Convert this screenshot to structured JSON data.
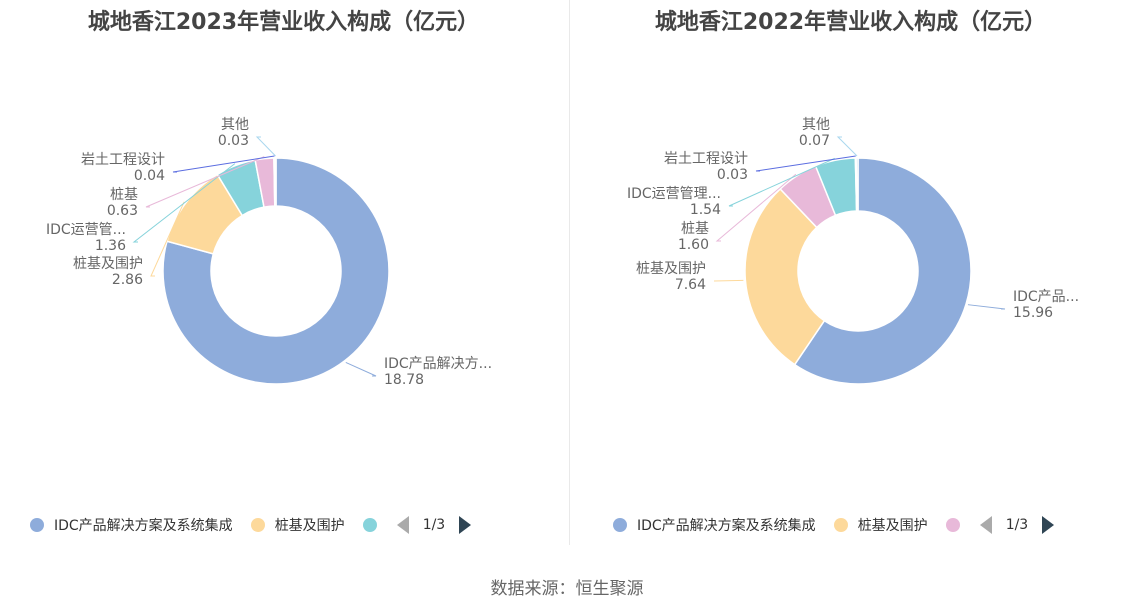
{
  "chart_data": [
    {
      "type": "pie",
      "title": "城地香江2023年营业收入构成（亿元）",
      "slices": [
        {
          "label": "IDC产品解决方...",
          "value": 18.78,
          "value_text": "18.78",
          "color": "#8eacdb"
        },
        {
          "label": "桩基及围护",
          "value": 2.86,
          "value_text": "2.86",
          "color": "#fdd99b"
        },
        {
          "label": "IDC运营管...",
          "value": 1.36,
          "value_text": "1.36",
          "color": "#86d3db"
        },
        {
          "label": "桩基",
          "value": 0.63,
          "value_text": "0.63",
          "color": "#e8b9d9"
        },
        {
          "label": "岩土工程设计",
          "value": 0.04,
          "value_text": "0.04",
          "color": "#5b6de0"
        },
        {
          "label": "其他",
          "value": 0.03,
          "value_text": "0.03",
          "color": "#a9d7ef"
        }
      ],
      "legend": {
        "items": [
          {
            "label": "IDC产品解决方案及系统集成",
            "color": "#8eacdb"
          },
          {
            "label": "桩基及围护",
            "color": "#fdd99b"
          },
          {
            "label": "",
            "color": "#86d3db"
          }
        ],
        "page": "1/3",
        "placement": "bottom"
      }
    },
    {
      "type": "pie",
      "title": "城地香江2022年营业收入构成（亿元）",
      "slices": [
        {
          "label": "IDC产品...",
          "value": 15.96,
          "value_text": "15.96",
          "color": "#8eacdb"
        },
        {
          "label": "桩基及围护",
          "value": 7.64,
          "value_text": "7.64",
          "color": "#fdd99b"
        },
        {
          "label": "桩基",
          "value": 1.6,
          "value_text": "1.60",
          "color": "#e8b9d9"
        },
        {
          "label": "IDC运营管理...",
          "value": 1.54,
          "value_text": "1.54",
          "color": "#86d3db"
        },
        {
          "label": "岩土工程设计",
          "value": 0.03,
          "value_text": "0.03",
          "color": "#5b6de0"
        },
        {
          "label": "其他",
          "value": 0.07,
          "value_text": "0.07",
          "color": "#a9d7ef"
        }
      ],
      "legend": {
        "items": [
          {
            "label": "IDC产品解决方案及系统集成",
            "color": "#8eacdb"
          },
          {
            "label": "桩基及围护",
            "color": "#fdd99b"
          },
          {
            "label": "",
            "color": "#e8b9d9"
          }
        ],
        "page": "1/3",
        "placement": "bottom"
      }
    }
  ],
  "footer": {
    "source": "数据来源：恒生聚源"
  }
}
